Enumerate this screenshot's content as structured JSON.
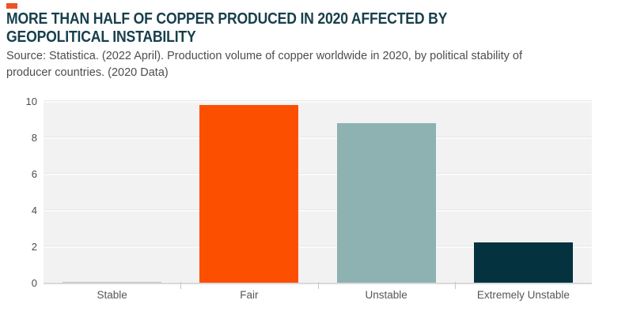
{
  "page": {
    "background": "#FFFFFF"
  },
  "header": {
    "marker_color": "#F05123",
    "title_line1": "MORE THAN HALF OF COPPER PRODUCED IN 2020 AFFECTED BY",
    "title_line2": "GEOPOLITICAL INSTABILITY",
    "title_color": "#173F4B",
    "source_line1": "Source: Statistica. (2022 April). Production volume of copper worldwide in 2020, by political stability of",
    "source_line2": "producer countries. (2020 Data)",
    "source_color": "#4D4D4D"
  },
  "chart_data": {
    "type": "bar",
    "title": "MORE THAN HALF OF COPPER PRODUCED IN 2020 AFFECTED BY GEOPOLITICAL INSTABILITY",
    "source": "Source: Statistica. (2022 April). Production volume of copper worldwide in 2020, by political stability of producer countries. (2020 Data)",
    "categories": [
      "Stable",
      "Fair",
      "Unstable",
      "Extremely Unstable"
    ],
    "values": [
      0.05,
      9.8,
      8.8,
      2.2
    ],
    "bar_colors": [
      "#C4C4C4",
      "#FC4F00",
      "#8EB1B2",
      "#04323E"
    ],
    "xlabel": "",
    "ylabel": "",
    "ylim": [
      0,
      10
    ],
    "yticks": [
      0,
      2,
      4,
      6,
      8,
      10
    ],
    "grid": true,
    "legend": "none",
    "plot_background": "#F2F2F2",
    "gridline_color": "#FBFBFB",
    "gridline_edge_color": "#E8E8E8",
    "axis_line_color": "#D9D9D9",
    "boundary_tick_color": "#C8C8C8",
    "tick_label_color": "#4C4C4C",
    "x_label_color": "#565656"
  }
}
